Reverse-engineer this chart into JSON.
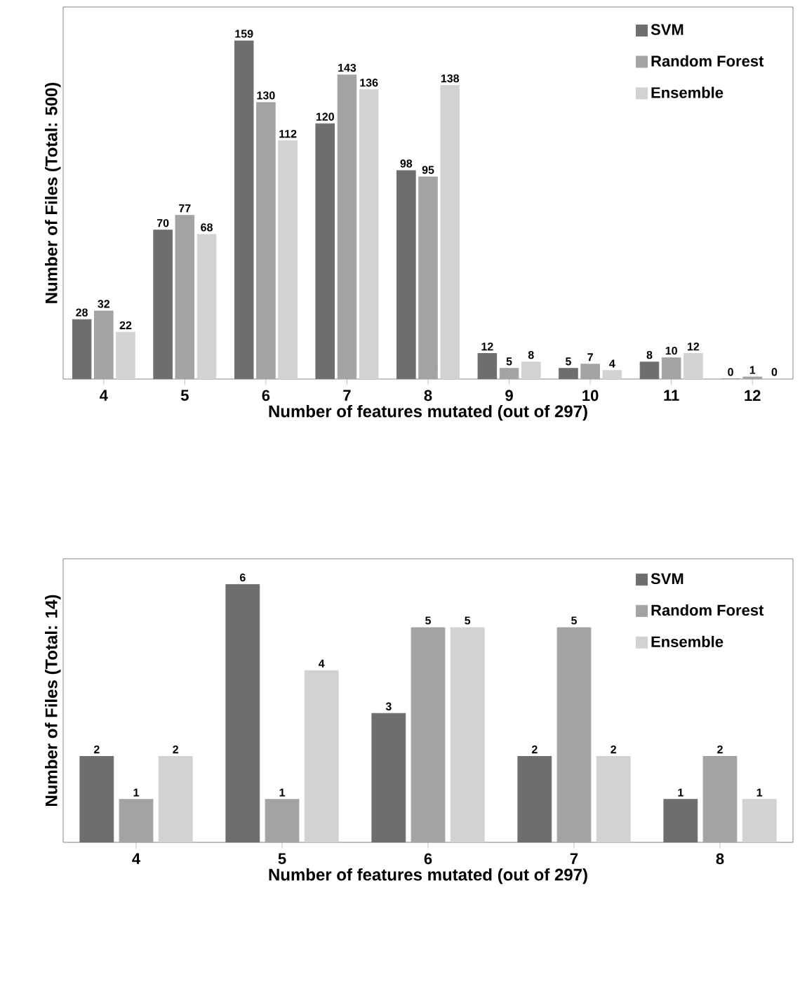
{
  "chart_data": [
    {
      "type": "bar",
      "xlabel": "Number of features mutated (out of 297)",
      "ylabel": "Number of Files  (Total: 500)",
      "categories": [
        "4",
        "5",
        "6",
        "7",
        "8",
        "9",
        "10",
        "11",
        "12"
      ],
      "series": [
        {
          "name": "SVM",
          "color": "#6e6e6e",
          "values": [
            28,
            70,
            159,
            120,
            98,
            12,
            5,
            8,
            0
          ]
        },
        {
          "name": "Random Forest",
          "color": "#a3a3a3",
          "values": [
            32,
            77,
            130,
            143,
            95,
            5,
            7,
            10,
            1
          ]
        },
        {
          "name": "Ensemble",
          "color": "#d2d2d2",
          "values": [
            22,
            68,
            112,
            136,
            138,
            8,
            4,
            12,
            0
          ]
        }
      ],
      "data_labels": true,
      "legend": "top right",
      "tick_labels": "x",
      "grid": false
    },
    {
      "type": "bar",
      "xlabel": "Number of features mutated (out of 297)",
      "ylabel": "Number of Files  (Total: 14)",
      "categories": [
        "4",
        "5",
        "6",
        "7",
        "8"
      ],
      "series": [
        {
          "name": "SVM",
          "color": "#6e6e6e",
          "values": [
            2,
            6,
            3,
            2,
            1
          ]
        },
        {
          "name": "Random Forest",
          "color": "#a3a3a3",
          "values": [
            1,
            1,
            5,
            5,
            2
          ]
        },
        {
          "name": "Ensemble",
          "color": "#d2d2d2",
          "values": [
            2,
            4,
            5,
            2,
            1
          ]
        }
      ],
      "data_labels": true,
      "legend": "top right",
      "tick_labels": "x",
      "grid": false
    }
  ]
}
